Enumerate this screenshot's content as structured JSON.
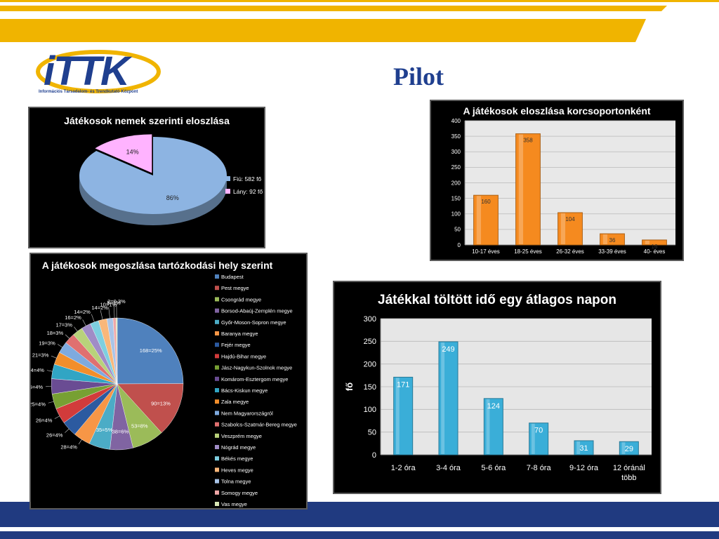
{
  "page": {
    "title": "Pilot",
    "logo_text": "iTTK",
    "logo_subtitle": "Információs Társadalom- és Trendkutató Központ",
    "colors": {
      "navy": "#1f3f8f",
      "gold": "#f0b400",
      "bottom_band": "#203a80"
    }
  },
  "chart_data": [
    {
      "id": "gender",
      "type": "pie",
      "title": "Játékosok nemek szerinti eloszlása",
      "slices": [
        {
          "legend": "Fiú: 582 fő",
          "label": "86%",
          "value": 86,
          "color": "#8db4e2"
        },
        {
          "legend": "Lány: 92 fő",
          "label": "14%",
          "value": 14,
          "color": "#ffb3ff"
        }
      ],
      "legend_position": "right"
    },
    {
      "id": "age",
      "type": "bar",
      "title": "A játékosok eloszlása korcsoportonként",
      "categories": [
        "10-17 éves",
        "18-25 éves",
        "26-32 éves",
        "33-39 éves",
        "40- éves"
      ],
      "values": [
        160,
        358,
        104,
        36,
        16
      ],
      "ylim": [
        0,
        400
      ],
      "yticks": [
        "0",
        "50",
        "100",
        "150",
        "200",
        "250",
        "300",
        "350",
        "400"
      ],
      "grid": true,
      "color": "#f58a1f"
    },
    {
      "id": "location",
      "type": "pie",
      "title": "A játékosok megoszlása tartózkodási hely szerint",
      "legend_position": "right",
      "slices": [
        {
          "legend": "Budapest",
          "label": "168=25%",
          "value": 168,
          "color": "#4f81bd"
        },
        {
          "legend": "Pest megye",
          "label": "90=13%",
          "value": 90,
          "color": "#c0504d"
        },
        {
          "legend": "Csongrád megye",
          "label": "53=8%",
          "value": 53,
          "color": "#9bbb59"
        },
        {
          "legend": "Borsod-Abaúj-Zemplén megye",
          "label": "38=6%",
          "value": 38,
          "color": "#8064a2"
        },
        {
          "legend": "Győr-Moson-Sopron megye",
          "label": "35=5%",
          "value": 35,
          "color": "#4bacc6"
        },
        {
          "legend": "Baranya megye",
          "label": "28=4%",
          "value": 28,
          "color": "#f79646"
        },
        {
          "legend": "Fejér megye",
          "label": "26=4%",
          "value": 26,
          "color": "#2c5aa0"
        },
        {
          "legend": "Hajdú-Bihar megye",
          "label": "26=4%",
          "value": 26,
          "color": "#d23b3b"
        },
        {
          "legend": "Jász-Nagykun-Szolnok megye",
          "label": "25=4%",
          "value": 25,
          "color": "#77a033"
        },
        {
          "legend": "Komárom-Esztergom megye",
          "label": "25=4%",
          "value": 25,
          "color": "#6a4c93"
        },
        {
          "legend": "Bács-Kiskun megye",
          "label": "24=4%",
          "value": 24,
          "color": "#31a5c4"
        },
        {
          "legend": "Zala megye",
          "label": "21=3%",
          "value": 21,
          "color": "#f28e2b"
        },
        {
          "legend": "Nem Magyarországról",
          "label": "19=3%",
          "value": 19,
          "color": "#7eaadf"
        },
        {
          "legend": "Szabolcs-Szatmár-Bereg megye",
          "label": "18=3%",
          "value": 18,
          "color": "#e07070"
        },
        {
          "legend": "Veszprém megye",
          "label": "17=3%",
          "value": 17,
          "color": "#b8d27a"
        },
        {
          "legend": "Nógrád megye",
          "label": "16=2%",
          "value": 16,
          "color": "#a08cc6"
        },
        {
          "legend": "Békés megye",
          "label": "14=2%",
          "value": 14,
          "color": "#7ecfe0"
        },
        {
          "legend": "Heves megye",
          "label": "14=2%",
          "value": 14,
          "color": "#f9b77a"
        },
        {
          "legend": "Tolna megye",
          "label": "10=1%",
          "value": 10,
          "color": "#a9c4e8"
        },
        {
          "legend": "Somogy megye",
          "label": "5=1%",
          "value": 5,
          "color": "#f0a8a8"
        },
        {
          "legend": "Vas megye",
          "label": "2=0,3%",
          "value": 2,
          "color": "#d8e6b4"
        }
      ]
    },
    {
      "id": "time",
      "type": "bar",
      "title": "Játékkal töltött idő egy átlagos napon",
      "categories": [
        "1-2 óra",
        "3-4 óra",
        "5-6 óra",
        "7-8 óra",
        "9-12 óra",
        "12 óránál több"
      ],
      "values": [
        171,
        249,
        124,
        70,
        31,
        29
      ],
      "ylim": [
        0,
        300
      ],
      "yticks": [
        "0",
        "50",
        "100",
        "150",
        "200",
        "250",
        "300"
      ],
      "ylabel": "fő",
      "grid": true,
      "color": "#3aaed8"
    }
  ]
}
